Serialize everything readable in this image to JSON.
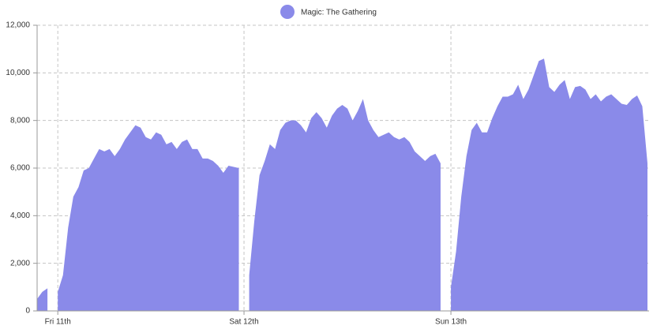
{
  "chart_data": {
    "type": "area",
    "categories": [
      null,
      null,
      null,
      null,
      "Fri 11th",
      null,
      null,
      null,
      null,
      null,
      null,
      null,
      null,
      null,
      null,
      null,
      null,
      null,
      null,
      null,
      null,
      null,
      null,
      null,
      null,
      null,
      null,
      null,
      null,
      null,
      null,
      null,
      null,
      null,
      null,
      null,
      null,
      null,
      null,
      null,
      "Sat 12th",
      null,
      null,
      null,
      null,
      null,
      null,
      null,
      null,
      null,
      null,
      null,
      null,
      null,
      null,
      null,
      null,
      null,
      null,
      null,
      null,
      null,
      null,
      null,
      null,
      null,
      null,
      null,
      null,
      null,
      null,
      null,
      null,
      null,
      null,
      null,
      null,
      null,
      null,
      null,
      "Sun 13th",
      null,
      null,
      null,
      null,
      null,
      null,
      null,
      null,
      null,
      null,
      null,
      null,
      null,
      null,
      null,
      null,
      null,
      null,
      null,
      null,
      null,
      null,
      null,
      null,
      null,
      null,
      null,
      null,
      null,
      null,
      null,
      null,
      null,
      null,
      null,
      null,
      null,
      null
    ],
    "series": [
      {
        "name": "Magic: The Gathering",
        "color": "#8a8ae9",
        "values": [
          500,
          800,
          950,
          null,
          800,
          1500,
          3500,
          4800,
          5200,
          5900,
          6000,
          6400,
          6800,
          6700,
          6800,
          6500,
          6800,
          7200,
          7500,
          7800,
          7700,
          7300,
          7200,
          7500,
          7400,
          7000,
          7100,
          6800,
          7100,
          7200,
          6800,
          6800,
          6400,
          6400,
          6300,
          6100,
          5800,
          6100,
          6050,
          6000,
          null,
          1500,
          3800,
          5700,
          6300,
          7000,
          6800,
          7600,
          7900,
          8000,
          8000,
          7800,
          7500,
          8100,
          8350,
          8100,
          7700,
          8200,
          8500,
          8650,
          8500,
          8000,
          8400,
          8900,
          8000,
          7600,
          7300,
          7400,
          7500,
          7300,
          7200,
          7300,
          7100,
          6700,
          6500,
          6300,
          6500,
          6600,
          6200,
          null,
          1000,
          2500,
          4800,
          6500,
          7600,
          7900,
          7500,
          7500,
          8100,
          8600,
          9000,
          9000,
          9100,
          9500,
          8900,
          9300,
          9900,
          10500,
          10600,
          9400,
          9200,
          9500,
          9700,
          8900,
          9400,
          9450,
          9300,
          8900,
          9100,
          8800,
          9000,
          9100,
          8900,
          8700,
          8650,
          8900,
          9050,
          8600,
          6200
        ]
      }
    ],
    "ylim": [
      0,
      12000
    ],
    "yticks": [
      0,
      {
        "value": 2000,
        "label": "2,000"
      },
      {
        "value": 4000,
        "label": "4,000"
      },
      {
        "value": 6000,
        "label": "6,000"
      },
      {
        "value": 8000,
        "label": "8,000"
      },
      {
        "value": 10000,
        "label": "10,000"
      },
      {
        "value": 12000,
        "label": "12,000"
      }
    ],
    "grid": true,
    "legend": "top"
  }
}
